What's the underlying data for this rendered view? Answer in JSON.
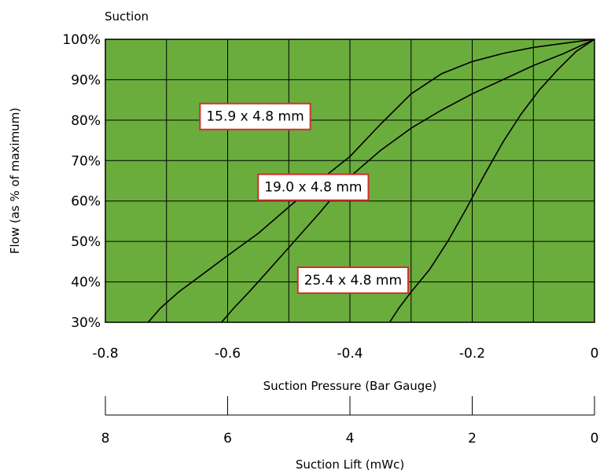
{
  "chart_data": {
    "type": "line",
    "title": "Suction",
    "xlabel": "Suction Pressure (Bar Gauge)",
    "ylabel": "Flow (as % of maximum)",
    "xlim": [
      -0.8,
      0
    ],
    "ylim": [
      30,
      100
    ],
    "grid": true,
    "plot_background": "#6AAD3D",
    "line_color": "#000000",
    "label_border_color": "#D32F2F",
    "x_ticks": [
      "-0.8",
      "-0.6",
      "-0.4",
      "-0.2",
      "0"
    ],
    "y_ticks": [
      "30%",
      "40%",
      "50%",
      "60%",
      "70%",
      "80%",
      "90%",
      "100%"
    ],
    "secondary_axis": {
      "label": "Suction Lift (mWc)",
      "ticks": [
        "8",
        "6",
        "4",
        "2",
        "0"
      ]
    },
    "series": [
      {
        "name": "15.9 x 4.8 mm",
        "x": [
          -0.73,
          -0.71,
          -0.68,
          -0.64,
          -0.6,
          -0.55,
          -0.5,
          -0.45,
          -0.4,
          -0.35,
          -0.3,
          -0.25,
          -0.2,
          -0.15,
          -0.1,
          -0.05,
          0
        ],
        "y": [
          30,
          33.5,
          37.5,
          42,
          46.5,
          52,
          58.5,
          65,
          71,
          79,
          86.5,
          91.5,
          94.5,
          96.5,
          98,
          99,
          100
        ]
      },
      {
        "name": "19.0 x 4.8 mm",
        "x": [
          -0.61,
          -0.59,
          -0.565,
          -0.55,
          -0.5,
          -0.45,
          -0.4,
          -0.35,
          -0.3,
          -0.25,
          -0.2,
          -0.15,
          -0.1,
          -0.05,
          0
        ],
        "y": [
          30,
          33.5,
          37.5,
          40,
          48.5,
          57,
          66,
          72.5,
          78,
          82.5,
          86.5,
          90,
          93.5,
          96.5,
          100
        ]
      },
      {
        "name": "25.4 x 4.8 mm",
        "x": [
          -0.335,
          -0.32,
          -0.3,
          -0.27,
          -0.24,
          -0.21,
          -0.18,
          -0.15,
          -0.12,
          -0.09,
          -0.06,
          -0.03,
          0
        ],
        "y": [
          30,
          33.5,
          37.5,
          43,
          50,
          58,
          66.5,
          74.5,
          81.5,
          87.5,
          92.5,
          97,
          100
        ]
      }
    ]
  }
}
